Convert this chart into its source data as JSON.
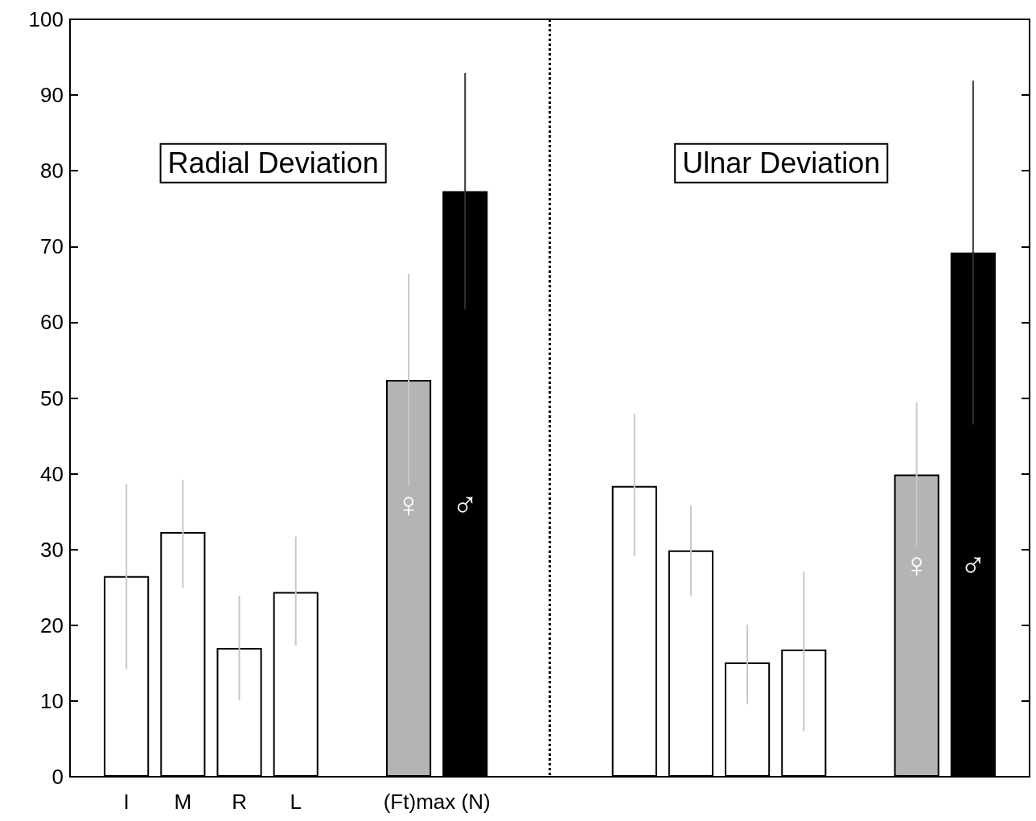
{
  "chart_data": {
    "type": "bar",
    "categories": [
      null,
      "I",
      "M",
      "R",
      "L",
      null,
      null,
      null,
      null,
      null,
      null,
      null,
      null,
      null,
      null,
      null,
      null,
      null
    ],
    "values": [
      null,
      26.5,
      32.3,
      17.0,
      24.4,
      null,
      52.4,
      77.3,
      null,
      null,
      38.4,
      29.9,
      15.1,
      16.8,
      null,
      39.9,
      69.2,
      null
    ],
    "colors": [
      null,
      "#ffffff",
      "#ffffff",
      "#ffffff",
      "#ffffff",
      null,
      "#b4b4b4",
      "#000000",
      null,
      null,
      "#ffffff",
      "#ffffff",
      "#ffffff",
      "#ffffff",
      null,
      "#b4b4b4",
      "#000000",
      null
    ],
    "errors": [
      null,
      [
        14.2,
        38.7
      ],
      [
        24.9,
        39.2
      ],
      [
        10.1,
        23.9
      ],
      [
        17.3,
        31.7
      ],
      null,
      14,
      15.6,
      null,
      null,
      [
        29.1,
        47.9
      ],
      [
        23.9,
        35.8
      ],
      [
        9.6,
        20.1
      ],
      [
        6.0,
        27.1
      ],
      null,
      9.5,
      22.7,
      null
    ],
    "ylim": [
      0,
      100
    ],
    "yticks": [
      0,
      10,
      20,
      30,
      40,
      50,
      60,
      70,
      80,
      90,
      100
    ],
    "annotations": [
      "Radial Deviation",
      "Ulnar Deviation",
      "♀",
      "♂",
      "♀",
      "♂",
      "(Ft)max (N)"
    ],
    "grid": false
  }
}
